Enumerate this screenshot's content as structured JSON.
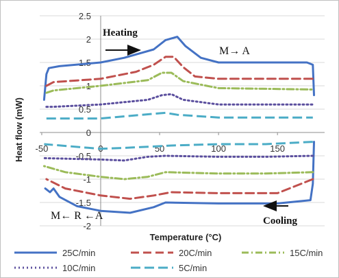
{
  "chart_data": {
    "type": "line",
    "title": "",
    "xlabel": "Temperature (°C)",
    "ylabel": "Heat flow (mW)",
    "xlim": [
      -50,
      190
    ],
    "ylim": [
      -2,
      2.5
    ],
    "xticks": [
      -50,
      0,
      50,
      100,
      150
    ],
    "yticks": [
      2.5,
      2,
      1.5,
      1,
      0.5,
      0,
      -0.5,
      -1,
      -1.5,
      -2
    ],
    "grid": "horizontal",
    "legend_position": "bottom",
    "annotations": [
      "Heating",
      "M→ A",
      "Cooling",
      "M← R ←A"
    ],
    "series": [
      {
        "name": "25C/min",
        "color": "#4472c4",
        "dash": "solid",
        "heating": [
          [
            -48,
            0.7
          ],
          [
            -46,
            1.25
          ],
          [
            -44,
            1.38
          ],
          [
            -35,
            1.42
          ],
          [
            0,
            1.5
          ],
          [
            20,
            1.6
          ],
          [
            45,
            1.78
          ],
          [
            55,
            1.98
          ],
          [
            65,
            2.05
          ],
          [
            72,
            1.85
          ],
          [
            85,
            1.6
          ],
          [
            100,
            1.5
          ],
          [
            140,
            1.5
          ],
          [
            175,
            1.5
          ],
          [
            180,
            1.45
          ],
          [
            181,
            0.8
          ]
        ],
        "cooling": [
          [
            181,
            -0.2
          ],
          [
            180,
            -1.1
          ],
          [
            178,
            -1.45
          ],
          [
            150,
            -1.52
          ],
          [
            100,
            -1.52
          ],
          [
            55,
            -1.5
          ],
          [
            45,
            -1.6
          ],
          [
            25,
            -1.72
          ],
          [
            0,
            -1.68
          ],
          [
            -20,
            -1.58
          ],
          [
            -35,
            -1.38
          ],
          [
            -40,
            -1.2
          ],
          [
            -43,
            -1.28
          ],
          [
            -47,
            -1.2
          ]
        ]
      },
      {
        "name": "20C/min",
        "color": "#c0504d",
        "dash": "12 6",
        "heating": [
          [
            -46,
            1.0
          ],
          [
            -40,
            1.08
          ],
          [
            0,
            1.15
          ],
          [
            30,
            1.3
          ],
          [
            45,
            1.45
          ],
          [
            55,
            1.62
          ],
          [
            62,
            1.62
          ],
          [
            70,
            1.4
          ],
          [
            80,
            1.2
          ],
          [
            100,
            1.15
          ],
          [
            180,
            1.15
          ]
        ],
        "cooling": [
          [
            180,
            -1.0
          ],
          [
            150,
            -1.3
          ],
          [
            100,
            -1.3
          ],
          [
            60,
            -1.28
          ],
          [
            45,
            -1.35
          ],
          [
            25,
            -1.42
          ],
          [
            0,
            -1.35
          ],
          [
            -30,
            -1.2
          ],
          [
            -46,
            -1.0
          ]
        ]
      },
      {
        "name": "15C/min",
        "color": "#9bbb59",
        "dash": "10 4 2 4",
        "heating": [
          [
            -46,
            0.85
          ],
          [
            -40,
            0.9
          ],
          [
            0,
            1.0
          ],
          [
            40,
            1.12
          ],
          [
            52,
            1.28
          ],
          [
            60,
            1.28
          ],
          [
            70,
            1.1
          ],
          [
            100,
            0.95
          ],
          [
            180,
            0.92
          ]
        ],
        "cooling": [
          [
            180,
            -0.85
          ],
          [
            140,
            -0.88
          ],
          [
            100,
            -0.88
          ],
          [
            55,
            -0.85
          ],
          [
            40,
            -0.95
          ],
          [
            20,
            -1.0
          ],
          [
            0,
            -0.95
          ],
          [
            -30,
            -0.85
          ],
          [
            -48,
            -0.72
          ]
        ]
      },
      {
        "name": "10C/min",
        "color": "#5b4f9e",
        "dash": "2 4",
        "heating": [
          [
            -46,
            0.55
          ],
          [
            -40,
            0.55
          ],
          [
            0,
            0.6
          ],
          [
            40,
            0.7
          ],
          [
            52,
            0.8
          ],
          [
            60,
            0.82
          ],
          [
            70,
            0.7
          ],
          [
            100,
            0.6
          ],
          [
            180,
            0.6
          ]
        ],
        "cooling": [
          [
            180,
            -0.5
          ],
          [
            140,
            -0.52
          ],
          [
            100,
            -0.52
          ],
          [
            55,
            -0.5
          ],
          [
            40,
            -0.52
          ],
          [
            20,
            -0.6
          ],
          [
            0,
            -0.58
          ],
          [
            -48,
            -0.55
          ]
        ]
      },
      {
        "name": "5C/min",
        "color": "#4bacc6",
        "dash": "14 6",
        "heating": [
          [
            -46,
            0.3
          ],
          [
            -40,
            0.3
          ],
          [
            0,
            0.3
          ],
          [
            45,
            0.4
          ],
          [
            55,
            0.42
          ],
          [
            65,
            0.38
          ],
          [
            100,
            0.32
          ],
          [
            180,
            0.32
          ]
        ],
        "cooling": [
          [
            180,
            -0.2
          ],
          [
            140,
            -0.25
          ],
          [
            100,
            -0.25
          ],
          [
            60,
            -0.28
          ],
          [
            45,
            -0.3
          ],
          [
            20,
            -0.33
          ],
          [
            0,
            -0.35
          ],
          [
            -48,
            -0.25
          ]
        ]
      }
    ]
  }
}
